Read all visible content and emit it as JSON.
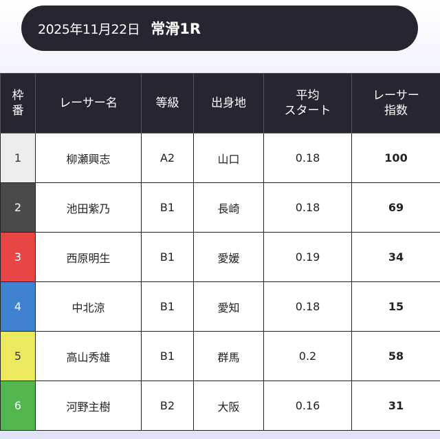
{
  "header": {
    "date": "2025年11月22日",
    "race": "常滑1R"
  },
  "table": {
    "columns": [
      [
        "枠",
        "番"
      ],
      [
        "レーサー名"
      ],
      [
        "等級"
      ],
      [
        "出身地"
      ],
      [
        "平均",
        "スタート"
      ],
      [
        "レーサー",
        "指数"
      ]
    ],
    "rows": [
      {
        "waku": "1",
        "name": "柳瀬興志",
        "grade": "A2",
        "hometown": "山口",
        "avg_start": "0.18",
        "score": "100",
        "color": "#ececec",
        "text_color": "#333333"
      },
      {
        "waku": "2",
        "name": "池田紫乃",
        "grade": "B1",
        "hometown": "長崎",
        "avg_start": "0.18",
        "score": "69",
        "color": "#4a4a4a",
        "text_color": "#ffffff"
      },
      {
        "waku": "3",
        "name": "西原明生",
        "grade": "B1",
        "hometown": "愛媛",
        "avg_start": "0.19",
        "score": "34",
        "color": "#e84545",
        "text_color": "#ffffff"
      },
      {
        "waku": "4",
        "name": "中北涼",
        "grade": "B1",
        "hometown": "愛知",
        "avg_start": "0.18",
        "score": "15",
        "color": "#3f82d0",
        "text_color": "#ffffff"
      },
      {
        "waku": "5",
        "name": "高山秀雄",
        "grade": "B1",
        "hometown": "群馬",
        "avg_start": "0.2",
        "score": "58",
        "color": "#ece95e",
        "text_color": "#333333"
      },
      {
        "waku": "6",
        "name": "河野主樹",
        "grade": "B2",
        "hometown": "大阪",
        "avg_start": "0.16",
        "score": "31",
        "color": "#52b64f",
        "text_color": "#ffffff"
      }
    ]
  }
}
